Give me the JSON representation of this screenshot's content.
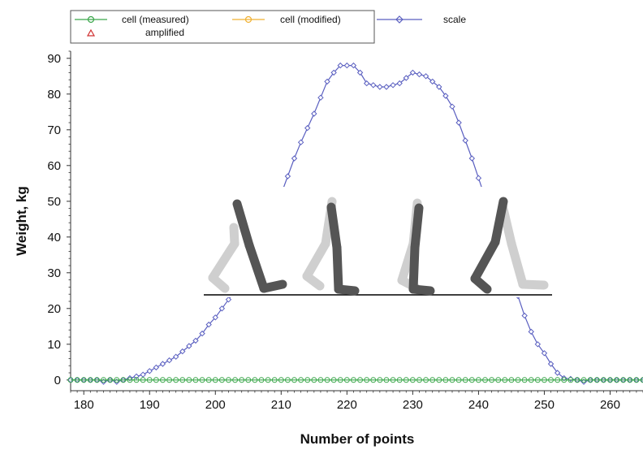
{
  "chart_data": {
    "type": "line",
    "title": "",
    "xlabel": "Number of points",
    "ylabel": "Weight, kg",
    "xlim": [
      178,
      265
    ],
    "ylim": [
      -3,
      92
    ],
    "x_ticks": [
      180,
      190,
      200,
      210,
      220,
      230,
      240,
      250,
      260
    ],
    "y_ticks": [
      0,
      10,
      20,
      30,
      40,
      50,
      60,
      70,
      80,
      90
    ],
    "grid": false,
    "legend_position": "top-left",
    "legend": [
      {
        "name": "cell (measured)",
        "color": "#3aa64a",
        "marker": "circle"
      },
      {
        "name": "cell (modified)",
        "color": "#f0b030",
        "marker": "circle"
      },
      {
        "name": "scale",
        "color": "#5a5fc0",
        "marker": "diamond"
      },
      {
        "name": "amplified",
        "color": "#d03030",
        "marker": "triangle"
      }
    ],
    "series": [
      {
        "name": "scale",
        "color": "#5a5fc0",
        "marker": "diamond",
        "x": [
          178,
          179,
          180,
          181,
          182,
          183,
          184,
          185,
          186,
          187,
          188,
          189,
          190,
          191,
          192,
          193,
          194,
          195,
          196,
          197,
          198,
          199,
          200,
          201,
          202,
          203,
          204,
          205,
          206,
          207,
          208,
          209,
          210,
          211,
          212,
          213,
          214,
          215,
          216,
          217,
          218,
          219,
          220,
          221,
          222,
          223,
          224,
          225,
          226,
          227,
          228,
          229,
          230,
          231,
          232,
          233,
          234,
          235,
          236,
          237,
          238,
          239,
          240,
          241,
          242,
          243,
          244,
          245,
          246,
          247,
          248,
          249,
          250,
          251,
          252,
          253,
          254,
          255,
          256,
          257,
          258,
          259,
          260,
          261,
          262,
          263,
          264,
          265
        ],
        "values": [
          0,
          0,
          0,
          0,
          0,
          -0.5,
          0,
          -0.5,
          0,
          0.5,
          1,
          1.5,
          2.5,
          3.5,
          4.5,
          5.5,
          6.5,
          8,
          9.5,
          11,
          13,
          15.5,
          17.5,
          20,
          22.5,
          25,
          28,
          31,
          35,
          39,
          44,
          48,
          52,
          57,
          62,
          66.5,
          70.5,
          74.5,
          79,
          83.5,
          86,
          88,
          88,
          88,
          86,
          83,
          82.5,
          82,
          82,
          82.5,
          83,
          84.5,
          86,
          85.5,
          85,
          83.5,
          82,
          79.5,
          76.5,
          72,
          67,
          62,
          56.5,
          51,
          46,
          41,
          35,
          29,
          23.5,
          18,
          13.5,
          10,
          7.5,
          4.5,
          2,
          0.5,
          0.3,
          0,
          -0.5,
          0,
          0,
          0,
          0,
          0,
          0,
          0,
          0,
          0
        ]
      },
      {
        "name": "cell (measured)",
        "color": "#3aa64a",
        "marker": "circle",
        "x": [
          178,
          179,
          180,
          181,
          182,
          183,
          184,
          185,
          186,
          187,
          188,
          189,
          190,
          191,
          192,
          193,
          194,
          195,
          196,
          197,
          198,
          199,
          200,
          201,
          202,
          203,
          204,
          205,
          206,
          207,
          208,
          209,
          210,
          211,
          212,
          213,
          214,
          215,
          216,
          217,
          218,
          219,
          220,
          221,
          222,
          223,
          224,
          225,
          226,
          227,
          228,
          229,
          230,
          231,
          232,
          233,
          234,
          235,
          236,
          237,
          238,
          239,
          240,
          241,
          242,
          243,
          244,
          245,
          246,
          247,
          248,
          249,
          250,
          251,
          252,
          253,
          254,
          255,
          256,
          257,
          258,
          259,
          260,
          261,
          262,
          263,
          264,
          265
        ],
        "values": [
          0,
          0,
          0,
          0,
          0,
          0,
          0,
          0,
          0,
          0,
          0,
          0,
          0,
          0,
          0,
          0,
          0,
          0,
          0,
          0,
          0,
          0,
          0,
          0,
          0,
          0,
          0,
          0,
          0,
          0,
          0,
          0,
          0,
          0,
          0,
          0,
          0,
          0,
          0,
          0,
          0,
          0,
          0,
          0,
          0,
          0,
          0,
          0,
          0,
          0,
          0,
          0,
          0,
          0,
          0,
          0,
          0,
          0,
          0,
          0,
          0,
          0,
          0,
          0,
          0,
          0,
          0,
          0,
          0,
          0,
          0,
          0,
          0,
          0,
          0,
          0,
          0,
          0,
          0,
          0,
          0,
          0,
          0,
          0,
          0,
          0,
          0,
          0
        ]
      }
    ]
  },
  "overlay": {
    "description_icon": "walking-gait-figures-icon",
    "ground_line_y_value": 24
  }
}
